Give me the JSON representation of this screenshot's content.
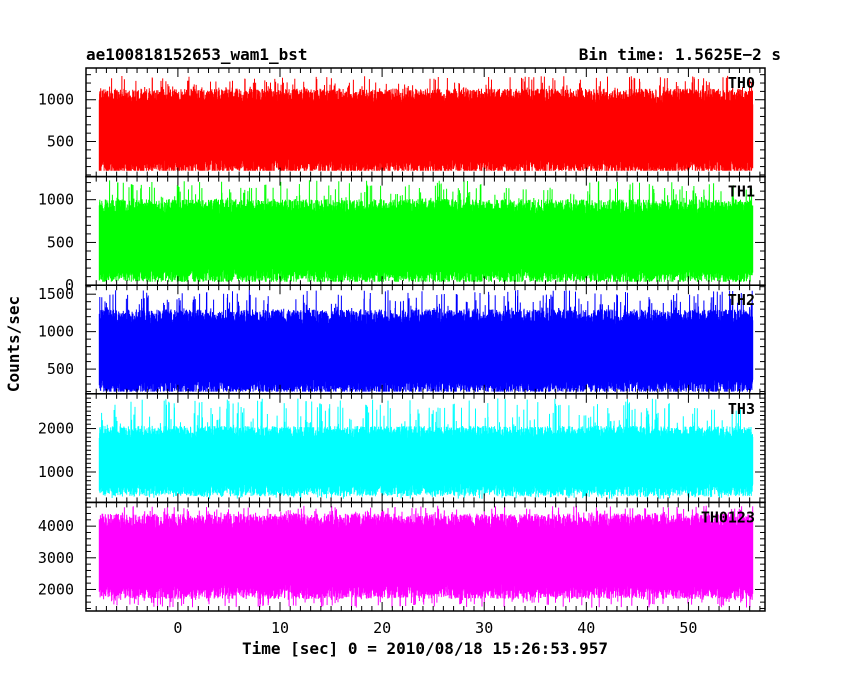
{
  "header": {
    "obs_id": "ae100818152653_wam1_bst",
    "bin_time": "Bin time: 1.5625E−2 s"
  },
  "chart_data": {
    "type": "line",
    "xlabel": "Time [sec] 0 = 2010/08/18 15:26:53.957",
    "ylabel": "Counts/sec",
    "xlim": [
      -9,
      57.5
    ],
    "data_x_range": [
      -7.7,
      56.3
    ],
    "xticks": [
      0,
      10,
      20,
      30,
      40,
      50
    ],
    "grid": false,
    "panels": [
      {
        "name": "TH0",
        "color": "#ff0000",
        "ylim": [
          80,
          1380
        ],
        "yticks": [
          500,
          1000
        ],
        "typical_range": [
          240,
          1000
        ],
        "range": [
          150,
          1290
        ]
      },
      {
        "name": "TH1",
        "color": "#00ff00",
        "ylim": [
          0,
          1270
        ],
        "yticks": [
          0,
          500,
          1000
        ],
        "typical_range": [
          150,
          880
        ],
        "range": [
          40,
          1230
        ]
      },
      {
        "name": "TH2",
        "color": "#0000ff",
        "ylim": [
          170,
          1620
        ],
        "yticks": [
          500,
          1000,
          1500
        ],
        "typical_range": [
          310,
          1150
        ],
        "range": [
          200,
          1560
        ]
      },
      {
        "name": "TH3",
        "color": "#00ffff",
        "ylim": [
          300,
          2800
        ],
        "yticks": [
          1000,
          2000
        ],
        "typical_range": [
          650,
          1850
        ],
        "range": [
          380,
          2700
        ]
      },
      {
        "name": "TH0123",
        "color": "#ff00ff",
        "ylim": [
          1320,
          4750
        ],
        "yticks": [
          2000,
          3000,
          4000
        ],
        "typical_range": [
          2050,
          4050
        ],
        "range": [
          1420,
          4650
        ]
      }
    ]
  }
}
